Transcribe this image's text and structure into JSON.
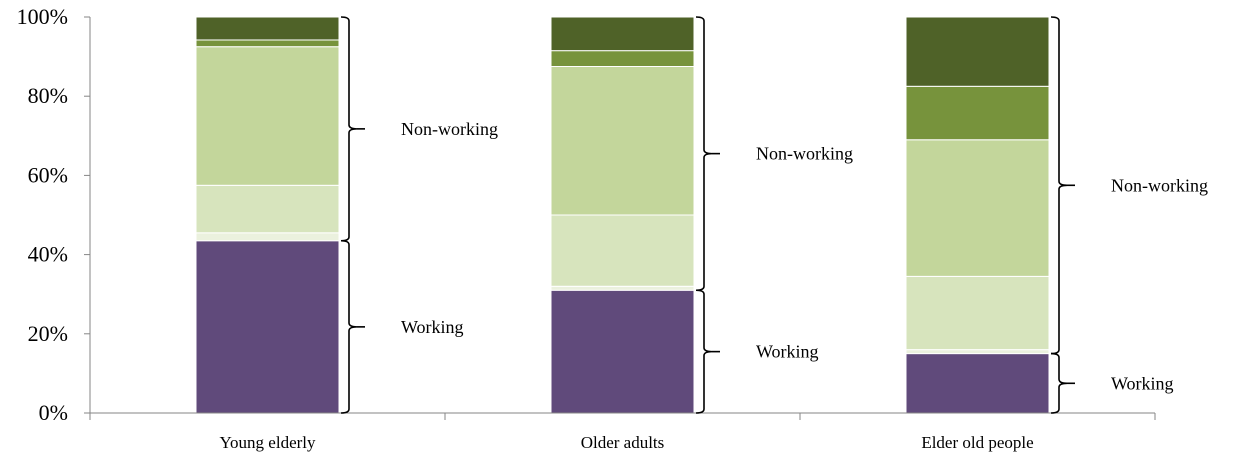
{
  "chart_data": {
    "type": "bar",
    "stacked": true,
    "categories": [
      "Young elderly",
      "Older adults",
      "Elder old people"
    ],
    "segments": [
      {
        "color": "#604a7b",
        "values": [
          43.5,
          31,
          15
        ]
      },
      {
        "color": "#ebf1de",
        "values": [
          2,
          1,
          1
        ]
      },
      {
        "color": "#d7e4bd",
        "values": [
          12,
          18,
          18.5
        ]
      },
      {
        "color": "#c3d69b",
        "values": [
          35,
          37.5,
          34.5
        ]
      },
      {
        "color": "#77933c",
        "values": [
          1.7,
          4,
          13.5
        ]
      },
      {
        "color": "#4f6228",
        "values": [
          5.8,
          8.5,
          17.5
        ]
      }
    ],
    "groups": [
      {
        "label": "Working",
        "segments": [
          0
        ]
      },
      {
        "label": "Non-working",
        "segments": [
          1,
          2,
          3,
          4,
          5
        ]
      }
    ],
    "ylim": [
      0,
      100
    ],
    "yticks": [
      "0%",
      "20%",
      "40%",
      "60%",
      "80%",
      "100%"
    ],
    "grid": false,
    "legend": "none"
  }
}
